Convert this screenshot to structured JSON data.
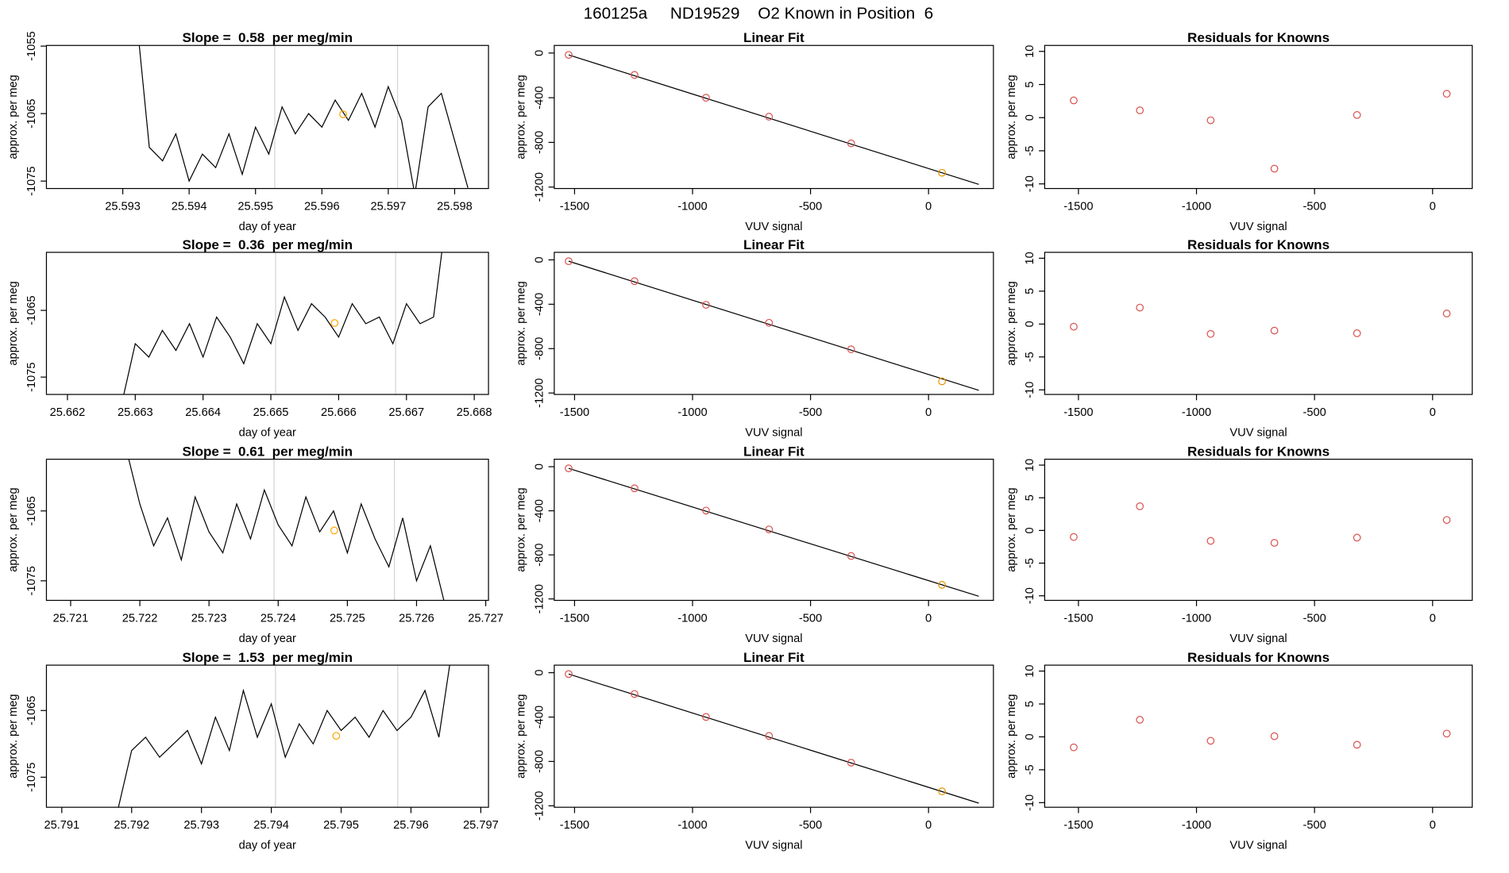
{
  "title": "160125a     ND19529    O2 Known in Position  6",
  "chart_data": [
    {
      "type": "line",
      "title": "Slope =  0.58  per meg/min",
      "xlabel": "day of year",
      "ylabel": "approx. per meg",
      "color": "#000000",
      "x": [
        25.5932,
        25.5934,
        25.5936,
        25.5938,
        25.594,
        25.5942,
        25.5944,
        25.5946,
        25.5948,
        25.595,
        25.5952,
        25.5954,
        25.5956,
        25.5958,
        25.596,
        25.5962,
        25.5964,
        25.5966,
        25.5968,
        25.597,
        25.5972,
        25.5974,
        25.5976,
        25.5978,
        25.598,
        25.5982
      ],
      "values": [
        -1050,
        -1070,
        -1072,
        -1068,
        -1075,
        -1071,
        -1073,
        -1068,
        -1074,
        -1067,
        -1071,
        -1064,
        -1068,
        -1065,
        -1067,
        -1063,
        -1066,
        -1062,
        -1067,
        -1061,
        -1066,
        -1077,
        -1064,
        -1062,
        -1069,
        -1076
      ],
      "vlines": [
        25.59529,
        25.59714
      ],
      "vline_color": "#d3d3d3",
      "highlight": {
        "x": 25.59632,
        "y": -1065.1,
        "color": "#ffa500"
      },
      "xlim": [
        25.59185,
        25.59851
      ],
      "ylim": [
        -1076.1,
        -1054.9
      ],
      "xticks": [
        25.593,
        25.594,
        25.595,
        25.596,
        25.597,
        25.598
      ],
      "yticks": [
        -1055,
        -1065,
        -1075
      ]
    },
    {
      "type": "scatter",
      "title": "Linear Fit",
      "xlabel": "VUV signal",
      "ylabel": "approx. per meg",
      "x": [
        -1525,
        -1246,
        -943,
        -676,
        -328,
        57
      ],
      "values": [
        -17,
        -196,
        -400,
        -570,
        -809,
        -1072
      ],
      "point_colors": [
        "#d9534f",
        "#d9534f",
        "#d9534f",
        "#d9534f",
        "#d9534f",
        "#e69500"
      ],
      "fit": {
        "x": [
          -1525,
          213
        ],
        "values": [
          -17,
          -1176
        ],
        "color": "#000000"
      },
      "xlim": [
        -1586,
        275
      ],
      "ylim": [
        -1213,
        68
      ],
      "xticks": [
        -1500,
        -1000,
        -500,
        0
      ],
      "yticks": [
        0,
        -400,
        -800,
        -1200
      ]
    },
    {
      "type": "scatter",
      "title": "Residuals for Knowns",
      "xlabel": "VUV signal",
      "ylabel": "approx. per meg",
      "x": [
        -1520,
        -1240,
        -940,
        -670,
        -320,
        60
      ],
      "values": [
        2.6,
        1.1,
        -0.4,
        -7.7,
        0.4,
        3.6
      ],
      "point_colors": [
        "#d9534f",
        "#d9534f",
        "#d9534f",
        "#d9534f",
        "#d9534f",
        "#d9534f"
      ],
      "xlim": [
        -1643,
        168
      ],
      "ylim": [
        -10.7,
        10.9
      ],
      "xticks": [
        -1500,
        -1000,
        -500,
        0
      ],
      "yticks": [
        10,
        5,
        0,
        -5,
        -10
      ]
    },
    {
      "type": "line",
      "title": "Slope =  0.36  per meg/min",
      "xlabel": "day of year",
      "ylabel": "approx. per meg",
      "color": "#000000",
      "x": [
        25.6628,
        25.663,
        25.6632,
        25.6634,
        25.6636,
        25.6638,
        25.664,
        25.6642,
        25.6644,
        25.6646,
        25.6648,
        25.665,
        25.6652,
        25.6654,
        25.6656,
        25.6658,
        25.666,
        25.6662,
        25.6664,
        25.6666,
        25.6668,
        25.667,
        25.6672,
        25.6674,
        25.6676
      ],
      "values": [
        -1079,
        -1070,
        -1072,
        -1068,
        -1071,
        -1067,
        -1072,
        -1066,
        -1069,
        -1073,
        -1067,
        -1070,
        -1063,
        -1068,
        -1064,
        -1066,
        -1069,
        -1064,
        -1067,
        -1066,
        -1070,
        -1064,
        -1067,
        -1066,
        -1050
      ],
      "vlines": [
        25.66507,
        25.66684
      ],
      "vline_color": "#d3d3d3",
      "highlight": {
        "x": 25.66594,
        "y": -1066.9,
        "color": "#ffa500"
      },
      "xlim": [
        25.66169,
        25.66821
      ],
      "ylim": [
        -1077.6,
        -1056.3
      ],
      "xticks": [
        25.662,
        25.663,
        25.664,
        25.665,
        25.666,
        25.667,
        25.668
      ],
      "yticks": [
        -1065,
        -1075
      ]
    },
    {
      "type": "scatter",
      "title": "Linear Fit",
      "xlabel": "VUV signal",
      "ylabel": "approx. per meg",
      "x": [
        -1525,
        -1246,
        -943,
        -676,
        -328,
        57
      ],
      "values": [
        -12,
        -192,
        -405,
        -567,
        -806,
        -1095
      ],
      "point_colors": [
        "#d9534f",
        "#d9534f",
        "#d9534f",
        "#d9534f",
        "#d9534f",
        "#e69500"
      ],
      "fit": {
        "x": [
          -1525,
          213
        ],
        "values": [
          -12,
          -1176
        ],
        "color": "#000000"
      },
      "xlim": [
        -1586,
        275
      ],
      "ylim": [
        -1213,
        68
      ],
      "xticks": [
        -1500,
        -1000,
        -500,
        0
      ],
      "yticks": [
        0,
        -400,
        -800,
        -1200
      ]
    },
    {
      "type": "scatter",
      "title": "Residuals for Knowns",
      "xlabel": "VUV signal",
      "ylabel": "approx. per meg",
      "x": [
        -1520,
        -1240,
        -940,
        -670,
        -320,
        60
      ],
      "values": [
        -0.4,
        2.5,
        -1.5,
        -1.0,
        -1.4,
        1.6
      ],
      "point_colors": [
        "#d9534f",
        "#d9534f",
        "#d9534f",
        "#d9534f",
        "#d9534f",
        "#d9534f"
      ],
      "xlim": [
        -1643,
        168
      ],
      "ylim": [
        -10.7,
        10.9
      ],
      "xticks": [
        -1500,
        -1000,
        -500,
        0
      ],
      "yticks": [
        10,
        5,
        0,
        -5,
        -10
      ]
    },
    {
      "type": "line",
      "title": "Slope =  0.61  per meg/min",
      "xlabel": "day of year",
      "ylabel": "approx. per meg",
      "color": "#000000",
      "x": [
        25.7218,
        25.722,
        25.7222,
        25.7224,
        25.7226,
        25.7228,
        25.723,
        25.7232,
        25.7234,
        25.7236,
        25.7238,
        25.724,
        25.7242,
        25.7244,
        25.7246,
        25.7248,
        25.725,
        25.7252,
        25.7254,
        25.7256,
        25.7258,
        25.726,
        25.7262,
        25.7264
      ],
      "values": [
        -1056,
        -1064,
        -1070,
        -1066,
        -1072,
        -1063,
        -1068,
        -1071,
        -1064,
        -1069,
        -1062,
        -1067,
        -1070,
        -1063,
        -1068,
        -1065,
        -1071,
        -1064,
        -1069,
        -1073,
        -1066,
        -1075,
        -1070,
        -1078
      ],
      "vlines": [
        25.72394,
        25.72568
      ],
      "vline_color": "#d3d3d3",
      "highlight": {
        "x": 25.72481,
        "y": -1067.8,
        "color": "#ffa500"
      },
      "xlim": [
        25.72065,
        25.72704
      ],
      "ylim": [
        -1077.8,
        -1057.6
      ],
      "xticks": [
        25.721,
        25.722,
        25.723,
        25.724,
        25.725,
        25.726,
        25.727
      ],
      "yticks": [
        -1065,
        -1075
      ]
    },
    {
      "type": "scatter",
      "title": "Linear Fit",
      "xlabel": "VUV signal",
      "ylabel": "approx. per meg",
      "x": [
        -1525,
        -1246,
        -943,
        -676,
        -328,
        57
      ],
      "values": [
        -15,
        -196,
        -398,
        -569,
        -810,
        -1072
      ],
      "point_colors": [
        "#d9534f",
        "#d9534f",
        "#d9534f",
        "#d9534f",
        "#d9534f",
        "#e69500"
      ],
      "fit": {
        "x": [
          -1525,
          213
        ],
        "values": [
          -15,
          -1176
        ],
        "color": "#000000"
      },
      "xlim": [
        -1586,
        275
      ],
      "ylim": [
        -1213,
        68
      ],
      "xticks": [
        -1500,
        -1000,
        -500,
        0
      ],
      "yticks": [
        0,
        -400,
        -800,
        -1200
      ]
    },
    {
      "type": "scatter",
      "title": "Residuals for Knowns",
      "xlabel": "VUV signal",
      "ylabel": "approx. per meg",
      "x": [
        -1520,
        -1240,
        -940,
        -670,
        -320,
        60
      ],
      "values": [
        -1.0,
        3.7,
        -1.6,
        -1.9,
        -1.1,
        1.6
      ],
      "point_colors": [
        "#d9534f",
        "#d9534f",
        "#d9534f",
        "#d9534f",
        "#d9534f",
        "#d9534f"
      ],
      "xlim": [
        -1643,
        168
      ],
      "ylim": [
        -10.7,
        10.9
      ],
      "xticks": [
        -1500,
        -1000,
        -500,
        0
      ],
      "yticks": [
        10,
        5,
        0,
        -5,
        -10
      ]
    },
    {
      "type": "line",
      "title": "Slope =  1.53  per meg/min",
      "xlabel": "day of year",
      "ylabel": "approx. per meg",
      "color": "#000000",
      "x": [
        25.7918,
        25.792,
        25.7922,
        25.7924,
        25.7926,
        25.7928,
        25.793,
        25.7932,
        25.7934,
        25.7936,
        25.7938,
        25.794,
        25.7942,
        25.7944,
        25.7946,
        25.7948,
        25.795,
        25.7952,
        25.7954,
        25.7956,
        25.7958,
        25.796,
        25.7962,
        25.7964,
        25.7966
      ],
      "values": [
        -1080,
        -1071,
        -1069,
        -1072,
        -1070,
        -1068,
        -1073,
        -1066,
        -1071,
        -1062,
        -1069,
        -1064,
        -1072,
        -1067,
        -1070,
        -1065,
        -1068,
        -1066,
        -1069,
        -1065,
        -1068,
        -1066,
        -1062,
        -1069,
        -1055
      ],
      "vlines": [
        25.79406,
        25.79581
      ],
      "vline_color": "#d3d3d3",
      "highlight": {
        "x": 25.79493,
        "y": -1068.8,
        "color": "#ffa500"
      },
      "xlim": [
        25.79078,
        25.79711
      ],
      "ylim": [
        -1079.5,
        -1058.2
      ],
      "xticks": [
        25.791,
        25.792,
        25.793,
        25.794,
        25.795,
        25.796,
        25.797
      ],
      "yticks": [
        -1065,
        -1075
      ]
    },
    {
      "type": "scatter",
      "title": "Linear Fit",
      "xlabel": "VUV signal",
      "ylabel": "approx. per meg",
      "x": [
        -1525,
        -1246,
        -943,
        -676,
        -328,
        57
      ],
      "values": [
        -12,
        -192,
        -399,
        -570,
        -811,
        -1070
      ],
      "point_colors": [
        "#d9534f",
        "#d9534f",
        "#d9534f",
        "#d9534f",
        "#d9534f",
        "#e69500"
      ],
      "fit": {
        "x": [
          -1525,
          213
        ],
        "values": [
          -12,
          -1176
        ],
        "color": "#000000"
      },
      "xlim": [
        -1586,
        275
      ],
      "ylim": [
        -1213,
        68
      ],
      "xticks": [
        -1500,
        -1000,
        -500,
        0
      ],
      "yticks": [
        0,
        -400,
        -800,
        -1200
      ]
    },
    {
      "type": "scatter",
      "title": "Residuals for Knowns",
      "xlabel": "VUV signal",
      "ylabel": "approx. per meg",
      "x": [
        -1520,
        -1240,
        -940,
        -670,
        -320,
        60
      ],
      "values": [
        -1.6,
        2.6,
        -0.6,
        0.1,
        -1.2,
        0.5
      ],
      "point_colors": [
        "#d9534f",
        "#d9534f",
        "#d9534f",
        "#d9534f",
        "#d9534f",
        "#d9534f"
      ],
      "xlim": [
        -1643,
        168
      ],
      "ylim": [
        -10.7,
        10.9
      ],
      "xticks": [
        -1500,
        -1000,
        -500,
        0
      ],
      "yticks": [
        10,
        5,
        0,
        -5,
        -10
      ]
    }
  ]
}
